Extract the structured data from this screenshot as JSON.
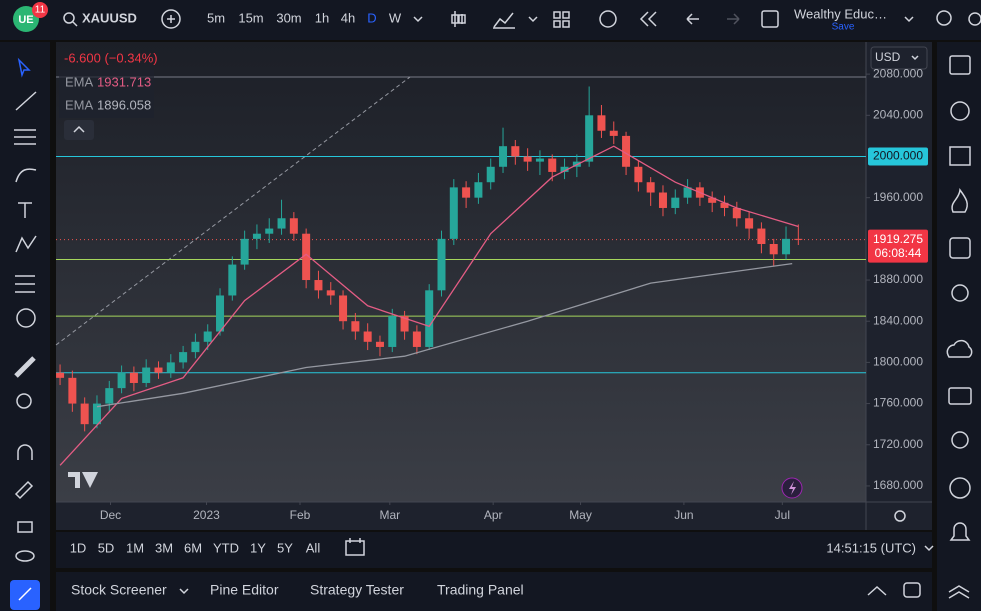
{
  "toolbar": {
    "badge": "11",
    "symbol": "XAUUSD",
    "intervals": [
      "5m",
      "15m",
      "30m",
      "1h",
      "4h",
      "D",
      "W"
    ],
    "layout_name": "Wealthy Educ…",
    "save": "Save"
  },
  "legend": {
    "change": "-6.600 (−0.34%)",
    "indicators": [
      {
        "name": "EMA",
        "value": "1931.713"
      },
      {
        "name": "EMA",
        "value": "1896.058"
      }
    ]
  },
  "chart_data": {
    "type": "candlestick",
    "up_color": "#26a69a",
    "down_color": "#ef5350",
    "candles": [
      [
        1790,
        1798,
        1778,
        1785
      ],
      [
        1785,
        1792,
        1752,
        1760
      ],
      [
        1760,
        1766,
        1733,
        1740
      ],
      [
        1740,
        1768,
        1736,
        1760
      ],
      [
        1760,
        1782,
        1752,
        1775
      ],
      [
        1775,
        1797,
        1770,
        1790
      ],
      [
        1790,
        1796,
        1772,
        1780
      ],
      [
        1780,
        1803,
        1776,
        1795
      ],
      [
        1795,
        1801,
        1784,
        1790
      ],
      [
        1790,
        1808,
        1785,
        1800
      ],
      [
        1800,
        1816,
        1794,
        1810
      ],
      [
        1810,
        1828,
        1804,
        1820
      ],
      [
        1820,
        1837,
        1812,
        1830
      ],
      [
        1830,
        1872,
        1826,
        1865
      ],
      [
        1865,
        1903,
        1860,
        1895
      ],
      [
        1895,
        1928,
        1890,
        1920
      ],
      [
        1920,
        1934,
        1910,
        1925
      ],
      [
        1925,
        1940,
        1916,
        1930
      ],
      [
        1930,
        1958,
        1924,
        1940
      ],
      [
        1940,
        1946,
        1918,
        1925
      ],
      [
        1925,
        1930,
        1872,
        1880
      ],
      [
        1880,
        1889,
        1862,
        1870
      ],
      [
        1870,
        1878,
        1856,
        1865
      ],
      [
        1865,
        1870,
        1832,
        1840
      ],
      [
        1840,
        1848,
        1822,
        1830
      ],
      [
        1830,
        1838,
        1812,
        1820
      ],
      [
        1820,
        1826,
        1806,
        1815
      ],
      [
        1815,
        1852,
        1810,
        1845
      ],
      [
        1845,
        1850,
        1822,
        1830
      ],
      [
        1830,
        1836,
        1808,
        1815
      ],
      [
        1815,
        1876,
        1812,
        1870
      ],
      [
        1870,
        1928,
        1864,
        1920
      ],
      [
        1920,
        1978,
        1914,
        1970
      ],
      [
        1970,
        1976,
        1950,
        1960
      ],
      [
        1960,
        1984,
        1954,
        1975
      ],
      [
        1975,
        1998,
        1968,
        1990
      ],
      [
        1990,
        2028,
        1984,
        2010
      ],
      [
        2010,
        2016,
        1992,
        2000
      ],
      [
        2000,
        2008,
        1986,
        1995
      ],
      [
        1995,
        2006,
        1982,
        1998
      ],
      [
        1998,
        2002,
        1976,
        1985
      ],
      [
        1985,
        1998,
        1978,
        1990
      ],
      [
        1990,
        2002,
        1980,
        1995
      ],
      [
        1995,
        2068,
        1990,
        2040
      ],
      [
        2040,
        2050,
        2018,
        2025
      ],
      [
        2025,
        2034,
        2012,
        2020
      ],
      [
        2020,
        2024,
        1982,
        1990
      ],
      [
        1990,
        1996,
        1966,
        1975
      ],
      [
        1975,
        1980,
        1952,
        1965
      ],
      [
        1965,
        1972,
        1942,
        1950
      ],
      [
        1950,
        1968,
        1944,
        1960
      ],
      [
        1960,
        1978,
        1954,
        1970
      ],
      [
        1970,
        1975,
        1952,
        1960
      ],
      [
        1960,
        1966,
        1946,
        1955
      ],
      [
        1955,
        1962,
        1942,
        1950
      ],
      [
        1950,
        1956,
        1932,
        1940
      ],
      [
        1940,
        1946,
        1920,
        1930
      ],
      [
        1930,
        1936,
        1906,
        1915
      ],
      [
        1915,
        1920,
        1893,
        1905
      ],
      [
        1905,
        1932,
        1900,
        1920
      ],
      [
        1920,
        1934,
        1914,
        1919
      ]
    ],
    "lines": [
      {
        "name": "EMA",
        "color": "#e45c84",
        "x": [
          0,
          5,
          10,
          15,
          20,
          25,
          30,
          35,
          40,
          45,
          50,
          55,
          60
        ],
        "values": [
          1700,
          1765,
          1785,
          1860,
          1905,
          1855,
          1835,
          1925,
          1980,
          2010,
          1975,
          1950,
          1932
        ]
      },
      {
        "name": "EMA",
        "color": "#9598a1",
        "x": [
          3,
          10,
          20,
          28,
          38,
          48,
          59.5
        ],
        "values": [
          1757,
          1770,
          1795,
          1806,
          1840,
          1877,
          1896
        ]
      }
    ],
    "hlines": [
      {
        "value": 2000,
        "label": "2000.000",
        "color": "#26c6da"
      },
      {
        "value": 1900,
        "color": "#a5d65c"
      },
      {
        "value": 1845,
        "color": "#a5d65c"
      },
      {
        "value": 1790,
        "color": "#26c6da"
      }
    ],
    "last_price": 1919.275,
    "xlim": [
      -0.33,
      65.5
    ],
    "ylim": [
      1664.4,
      2111.2
    ],
    "xticks": [
      {
        "value": 4.1,
        "label": "Dec"
      },
      {
        "value": 11.9,
        "label": "2023"
      },
      {
        "value": 19.5,
        "label": "Feb"
      },
      {
        "value": 26.8,
        "label": "Mar"
      },
      {
        "value": 35.2,
        "label": "Apr"
      },
      {
        "value": 42.3,
        "label": "May"
      },
      {
        "value": 50.7,
        "label": "Jun"
      },
      {
        "value": 58.7,
        "label": "Jul"
      }
    ],
    "yticks": [
      {
        "value": 2080,
        "label": "2080.000"
      },
      {
        "value": 2040,
        "label": "2040.000"
      },
      {
        "value": 1960,
        "label": "1960.000"
      },
      {
        "value": 1880,
        "label": "1880.000"
      },
      {
        "value": 1840,
        "label": "1840.000"
      },
      {
        "value": 1800,
        "label": "1800.000"
      },
      {
        "value": 1760,
        "label": "1760.000"
      },
      {
        "value": 1720,
        "label": "1720.000"
      },
      {
        "value": 1680,
        "label": "1680.000"
      }
    ]
  },
  "price_scale": {
    "currency": "USD",
    "countdown": "06:08:44"
  },
  "range_bar": {
    "ranges": [
      "1D",
      "5D",
      "1M",
      "3M",
      "6M",
      "YTD",
      "1Y",
      "5Y",
      "All"
    ],
    "clock": "14:51:15 (UTC)"
  },
  "bottom_panel": {
    "tabs": [
      "Stock Screener",
      "Pine Editor",
      "Strategy Tester",
      "Trading Panel"
    ]
  }
}
